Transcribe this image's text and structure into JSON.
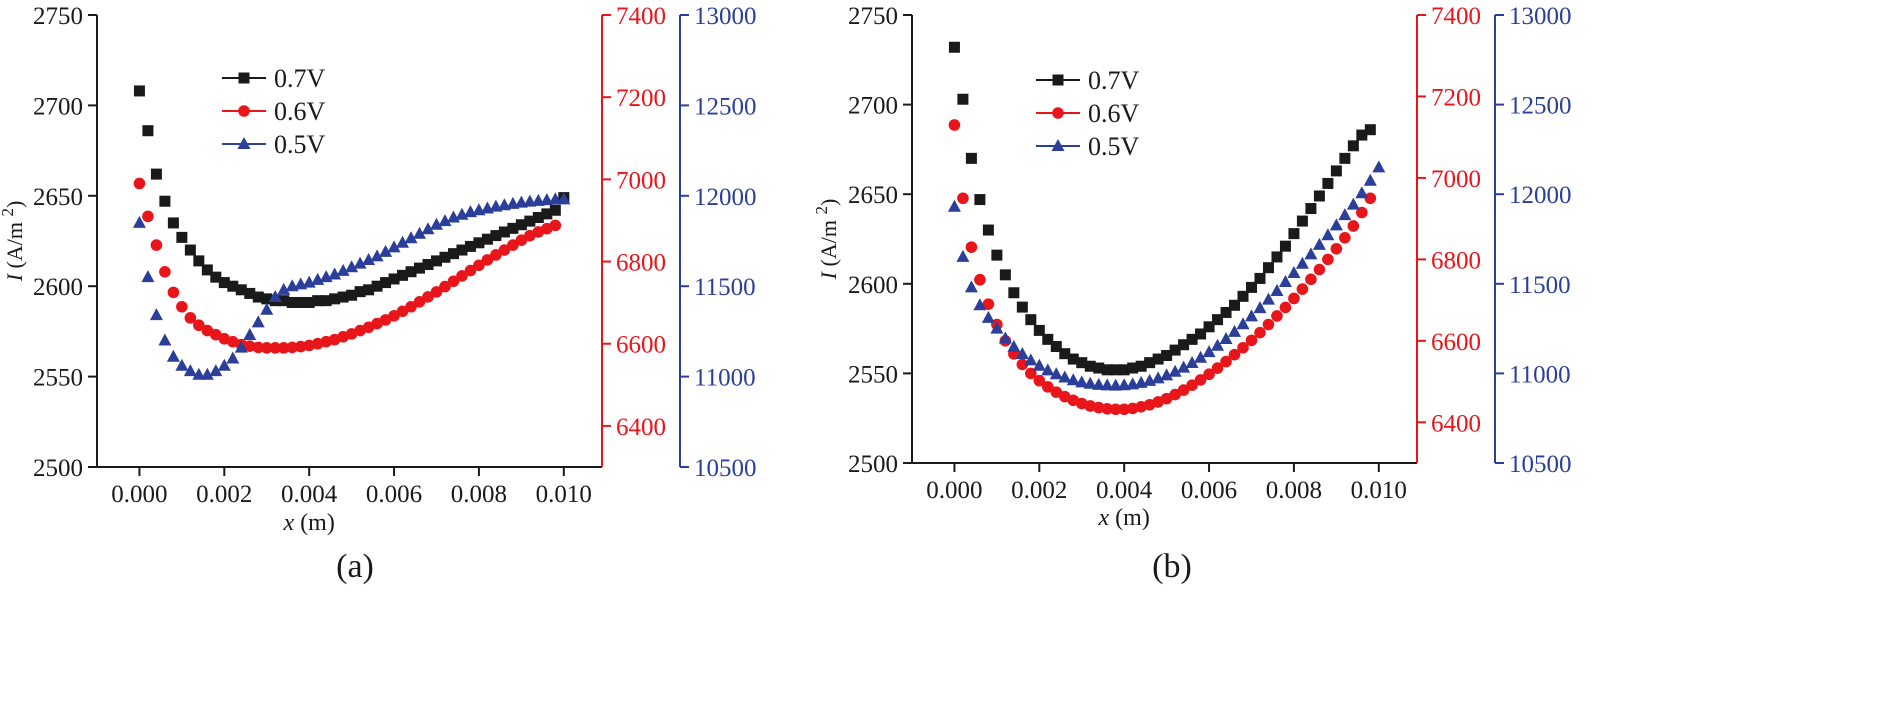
{
  "colors": {
    "black": "#1a1a1a",
    "red": "#e8161a",
    "blue": "#2b3f9a"
  },
  "axis_labels": {
    "y_italic": "I",
    "y_unit": " (A/m ",
    "y_sup": "2",
    "y_close": ")",
    "x_italic": "x",
    "x_unit": " (m)"
  },
  "chart_data": [
    {
      "type": "scatter",
      "panel_label": "(a)",
      "xlabel": "x (m)",
      "ylabel": "I (A/m 2)",
      "xlim": [
        -0.001,
        0.0109
      ],
      "x_ticks": [
        0.0,
        0.002,
        0.004,
        0.006,
        0.008,
        0.01
      ],
      "x_tick_labels": [
        "0.000",
        "0.002",
        "0.004",
        "0.006",
        "0.008",
        "0.010"
      ],
      "left_axis": {
        "ylim": [
          2500,
          2750
        ],
        "ticks": [
          2500,
          2550,
          2600,
          2650,
          2700,
          2750
        ],
        "tick_labels": [
          "2500",
          "2550",
          "2600",
          "2650",
          "2700",
          "2750"
        ]
      },
      "right_axis_1": {
        "color": "#e8161a",
        "ylim": [
          6300,
          7400
        ],
        "ticks": [
          6400,
          6600,
          6800,
          7000,
          7200,
          7400
        ],
        "tick_labels": [
          "6400",
          "6600",
          "6800",
          "7000",
          "7200",
          "7400"
        ]
      },
      "right_axis_2": {
        "color": "#2b3f9a",
        "ylim": [
          10500,
          13000
        ],
        "ticks": [
          10500,
          11000,
          11500,
          12000,
          12500,
          13000
        ],
        "tick_labels": [
          "10500",
          "11000",
          "11500",
          "12000",
          "12500",
          "13000"
        ]
      },
      "legend": [
        "0.7V",
        "0.6V",
        "0.5V"
      ],
      "series": [
        {
          "name": "0.7V",
          "axis": "left",
          "marker": "square",
          "color": "#1a1a1a",
          "x": [
            0,
            0.0002,
            0.0004,
            0.0006,
            0.0008,
            0.001,
            0.0012,
            0.0014,
            0.0016,
            0.0018,
            0.002,
            0.0022,
            0.0024,
            0.0026,
            0.0028,
            0.003,
            0.0032,
            0.0034,
            0.0036,
            0.0038,
            0.004,
            0.0042,
            0.0044,
            0.0046,
            0.0048,
            0.005,
            0.0052,
            0.0054,
            0.0056,
            0.0058,
            0.006,
            0.0062,
            0.0064,
            0.0066,
            0.0068,
            0.007,
            0.0072,
            0.0074,
            0.0076,
            0.0078,
            0.008,
            0.0082,
            0.0084,
            0.0086,
            0.0088,
            0.009,
            0.0092,
            0.0094,
            0.0096,
            0.0098,
            0.01
          ],
          "values": [
            2708,
            2686,
            2662,
            2647,
            2635,
            2627,
            2620,
            2614,
            2609,
            2605,
            2602,
            2600,
            2598,
            2596,
            2594,
            2593,
            2592,
            2592,
            2591,
            2591,
            2591,
            2592,
            2592,
            2593,
            2594,
            2595,
            2597,
            2598,
            2600,
            2602,
            2604,
            2606,
            2608,
            2610,
            2612,
            2614,
            2616,
            2618,
            2620,
            2622,
            2624,
            2626,
            2628,
            2630,
            2632,
            2634,
            2636,
            2638,
            2640,
            2642,
            2649
          ]
        },
        {
          "name": "0.6V",
          "axis": "right1",
          "marker": "circle",
          "color": "#e8161a",
          "x": [
            0,
            0.0002,
            0.0004,
            0.0006,
            0.0008,
            0.001,
            0.0012,
            0.0014,
            0.0016,
            0.0018,
            0.002,
            0.0022,
            0.0024,
            0.0026,
            0.0028,
            0.003,
            0.0032,
            0.0034,
            0.0036,
            0.0038,
            0.004,
            0.0042,
            0.0044,
            0.0046,
            0.0048,
            0.005,
            0.0052,
            0.0054,
            0.0056,
            0.0058,
            0.006,
            0.0062,
            0.0064,
            0.0066,
            0.0068,
            0.007,
            0.0072,
            0.0074,
            0.0076,
            0.0078,
            0.008,
            0.0082,
            0.0084,
            0.0086,
            0.0088,
            0.009,
            0.0092,
            0.0094,
            0.0096,
            0.0098
          ],
          "values": [
            6990,
            6910,
            6840,
            6775,
            6725,
            6690,
            6663,
            6645,
            6632,
            6622,
            6612,
            6605,
            6598,
            6594,
            6591,
            6590,
            6590,
            6590,
            6591,
            6593,
            6596,
            6600,
            6605,
            6610,
            6617,
            6624,
            6632,
            6640,
            6649,
            6658,
            6668,
            6679,
            6690,
            6702,
            6714,
            6726,
            6739,
            6752,
            6765,
            6778,
            6791,
            6804,
            6816,
            6828,
            6840,
            6852,
            6863,
            6872,
            6880,
            6888
          ]
        },
        {
          "name": "0.5V",
          "axis": "right2",
          "marker": "triangle",
          "color": "#2b3f9a",
          "x": [
            0,
            0.0002,
            0.0004,
            0.0006,
            0.0008,
            0.001,
            0.0012,
            0.0014,
            0.0016,
            0.0018,
            0.002,
            0.0022,
            0.0024,
            0.0026,
            0.0028,
            0.003,
            0.0032,
            0.0034,
            0.0036,
            0.0038,
            0.004,
            0.0042,
            0.0044,
            0.0046,
            0.0048,
            0.005,
            0.0052,
            0.0054,
            0.0056,
            0.0058,
            0.006,
            0.0062,
            0.0064,
            0.0066,
            0.0068,
            0.007,
            0.0072,
            0.0074,
            0.0076,
            0.0078,
            0.008,
            0.0082,
            0.0084,
            0.0086,
            0.0088,
            0.009,
            0.0092,
            0.0094,
            0.0096,
            0.0098,
            0.01
          ],
          "values": [
            11850,
            11550,
            11340,
            11200,
            11110,
            11060,
            11030,
            11010,
            11010,
            11030,
            11060,
            11100,
            11160,
            11230,
            11300,
            11370,
            11440,
            11480,
            11500,
            11510,
            11520,
            11535,
            11550,
            11565,
            11585,
            11605,
            11625,
            11645,
            11665,
            11690,
            11715,
            11740,
            11765,
            11790,
            11815,
            11840,
            11860,
            11880,
            11895,
            11910,
            11920,
            11930,
            11940,
            11948,
            11955,
            11962,
            11968,
            11972,
            11976,
            11980,
            11980
          ]
        }
      ]
    },
    {
      "type": "scatter",
      "panel_label": "(b)",
      "xlabel": "x (m)",
      "ylabel": "I (A/m 2)",
      "xlim": [
        -0.001,
        0.0109
      ],
      "x_ticks": [
        0.0,
        0.002,
        0.004,
        0.006,
        0.008,
        0.01
      ],
      "x_tick_labels": [
        "0.000",
        "0.002",
        "0.004",
        "0.006",
        "0.008",
        "0.010"
      ],
      "left_axis": {
        "ylim": [
          2500,
          2750
        ],
        "ticks": [
          2500,
          2550,
          2600,
          2650,
          2700,
          2750
        ],
        "tick_labels": [
          "2500",
          "2550",
          "2600",
          "2650",
          "2700",
          "2750"
        ]
      },
      "right_axis_1": {
        "color": "#e8161a",
        "ylim": [
          6300,
          7400
        ],
        "ticks": [
          6400,
          6600,
          6800,
          7000,
          7200,
          7400
        ],
        "tick_labels": [
          "6400",
          "6600",
          "6800",
          "7000",
          "7200",
          "7400"
        ]
      },
      "right_axis_2": {
        "color": "#2b3f9a",
        "ylim": [
          10500,
          13000
        ],
        "ticks": [
          10500,
          11000,
          11500,
          12000,
          12500,
          13000
        ],
        "tick_labels": [
          "10500",
          "11000",
          "11500",
          "12000",
          "12500",
          "13000"
        ]
      },
      "legend": [
        "0.7V",
        "0.6V",
        "0.5V"
      ],
      "series": [
        {
          "name": "0.7V",
          "axis": "left",
          "marker": "square",
          "color": "#1a1a1a",
          "x": [
            0,
            0.0002,
            0.0004,
            0.0006,
            0.0008,
            0.001,
            0.0012,
            0.0014,
            0.0016,
            0.0018,
            0.002,
            0.0022,
            0.0024,
            0.0026,
            0.0028,
            0.003,
            0.0032,
            0.0034,
            0.0036,
            0.0038,
            0.004,
            0.0042,
            0.0044,
            0.0046,
            0.0048,
            0.005,
            0.0052,
            0.0054,
            0.0056,
            0.0058,
            0.006,
            0.0062,
            0.0064,
            0.0066,
            0.0068,
            0.007,
            0.0072,
            0.0074,
            0.0076,
            0.0078,
            0.008,
            0.0082,
            0.0084,
            0.0086,
            0.0088,
            0.009,
            0.0092,
            0.0094,
            0.0096,
            0.0098
          ],
          "values": [
            2732,
            2703,
            2670,
            2647,
            2630,
            2616,
            2605,
            2595,
            2587,
            2580,
            2574,
            2569,
            2565,
            2561,
            2558,
            2556,
            2554,
            2553,
            2552,
            2552,
            2552,
            2553,
            2554,
            2556,
            2558,
            2560,
            2563,
            2566,
            2569,
            2572,
            2576,
            2580,
            2584,
            2588,
            2593,
            2598,
            2603,
            2609,
            2615,
            2621,
            2628,
            2635,
            2642,
            2649,
            2656,
            2663,
            2670,
            2677,
            2683,
            2686
          ]
        },
        {
          "name": "0.6V",
          "axis": "right1",
          "marker": "circle",
          "color": "#e8161a",
          "x": [
            0,
            0.0002,
            0.0004,
            0.0006,
            0.0008,
            0.001,
            0.0012,
            0.0014,
            0.0016,
            0.0018,
            0.002,
            0.0022,
            0.0024,
            0.0026,
            0.0028,
            0.003,
            0.0032,
            0.0034,
            0.0036,
            0.0038,
            0.004,
            0.0042,
            0.0044,
            0.0046,
            0.0048,
            0.005,
            0.0052,
            0.0054,
            0.0056,
            0.0058,
            0.006,
            0.0062,
            0.0064,
            0.0066,
            0.0068,
            0.007,
            0.0072,
            0.0074,
            0.0076,
            0.0078,
            0.008,
            0.0082,
            0.0084,
            0.0086,
            0.0088,
            0.009,
            0.0092,
            0.0094,
            0.0096,
            0.0098
          ],
          "values": [
            7130,
            6950,
            6830,
            6750,
            6690,
            6640,
            6600,
            6568,
            6542,
            6520,
            6502,
            6487,
            6474,
            6463,
            6454,
            6446,
            6440,
            6436,
            6433,
            6432,
            6432,
            6434,
            6438,
            6443,
            6450,
            6458,
            6468,
            6479,
            6491,
            6504,
            6518,
            6533,
            6549,
            6566,
            6583,
            6601,
            6620,
            6640,
            6661,
            6682,
            6704,
            6727,
            6751,
            6775,
            6800,
            6826,
            6853,
            6882,
            6915,
            6950
          ]
        },
        {
          "name": "0.5V",
          "axis": "right2",
          "marker": "triangle",
          "color": "#2b3f9a",
          "x": [
            0,
            0.0002,
            0.0004,
            0.0006,
            0.0008,
            0.001,
            0.0012,
            0.0014,
            0.0016,
            0.0018,
            0.002,
            0.0022,
            0.0024,
            0.0026,
            0.0028,
            0.003,
            0.0032,
            0.0034,
            0.0036,
            0.0038,
            0.004,
            0.0042,
            0.0044,
            0.0046,
            0.0048,
            0.005,
            0.0052,
            0.0054,
            0.0056,
            0.0058,
            0.006,
            0.0062,
            0.0064,
            0.0066,
            0.0068,
            0.007,
            0.0072,
            0.0074,
            0.0076,
            0.0078,
            0.008,
            0.0082,
            0.0084,
            0.0086,
            0.0088,
            0.009,
            0.0092,
            0.0094,
            0.0096,
            0.0098,
            0.01
          ],
          "values": [
            11930,
            11650,
            11480,
            11380,
            11310,
            11250,
            11195,
            11148,
            11108,
            11073,
            11043,
            11017,
            10995,
            10977,
            10962,
            10950,
            10942,
            10936,
            10933,
            10932,
            10934,
            10939,
            10947,
            10958,
            10972,
            10989,
            11009,
            11032,
            11058,
            11087,
            11119,
            11154,
            11192,
            11232,
            11274,
            11318,
            11364,
            11412,
            11460,
            11510,
            11560,
            11612,
            11664,
            11717,
            11771,
            11826,
            11883,
            11942,
            12005,
            12075,
            12150
          ]
        }
      ]
    }
  ]
}
